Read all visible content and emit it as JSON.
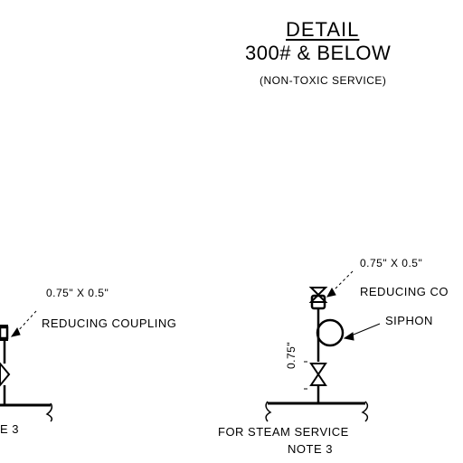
{
  "header": {
    "title": "DETAIL",
    "subtitle": "300# & BELOW",
    "service": "(NON-TOXIC SERVICE)"
  },
  "left_detail": {
    "size_label": "0.75\" X 0.5\"",
    "fitting_label": "REDUCING COUPLING",
    "note_fragment": "E 3"
  },
  "right_detail": {
    "size_label": "0.75\" X 0.5\"",
    "fitting_label": "REDUCING CO",
    "siphon_label": "SIPHON",
    "pipe_dim": "0.75\"",
    "service_label": "FOR STEAM SERVICE",
    "note_label": "NOTE 3"
  }
}
